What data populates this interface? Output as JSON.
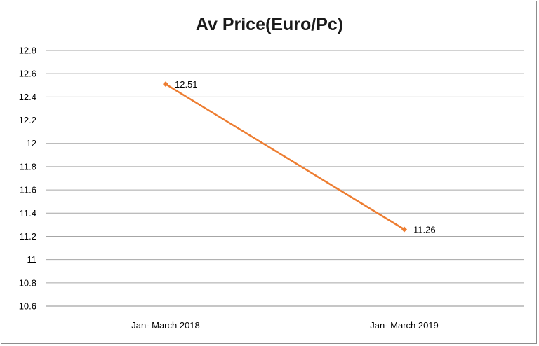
{
  "chart_data": {
    "type": "line",
    "title": "Av Price(Euro/Pc)",
    "xlabel": "",
    "ylabel": "",
    "categories": [
      "Jan- March 2018",
      "Jan- March 2019"
    ],
    "series": [
      {
        "values": [
          12.51,
          11.26
        ],
        "data_labels": [
          "12.51",
          "11.26"
        ]
      }
    ],
    "ylim": [
      10.6,
      12.8
    ],
    "yticks": [
      "12.8",
      "12.6",
      "12.4",
      "12.2",
      "12",
      "11.8",
      "11.6",
      "11.4",
      "11.2",
      "11",
      "10.8",
      "10.6"
    ],
    "grid": true,
    "legend": "none",
    "colors": {
      "series": "#ed7d31",
      "grid": "#a6a6a6"
    }
  }
}
